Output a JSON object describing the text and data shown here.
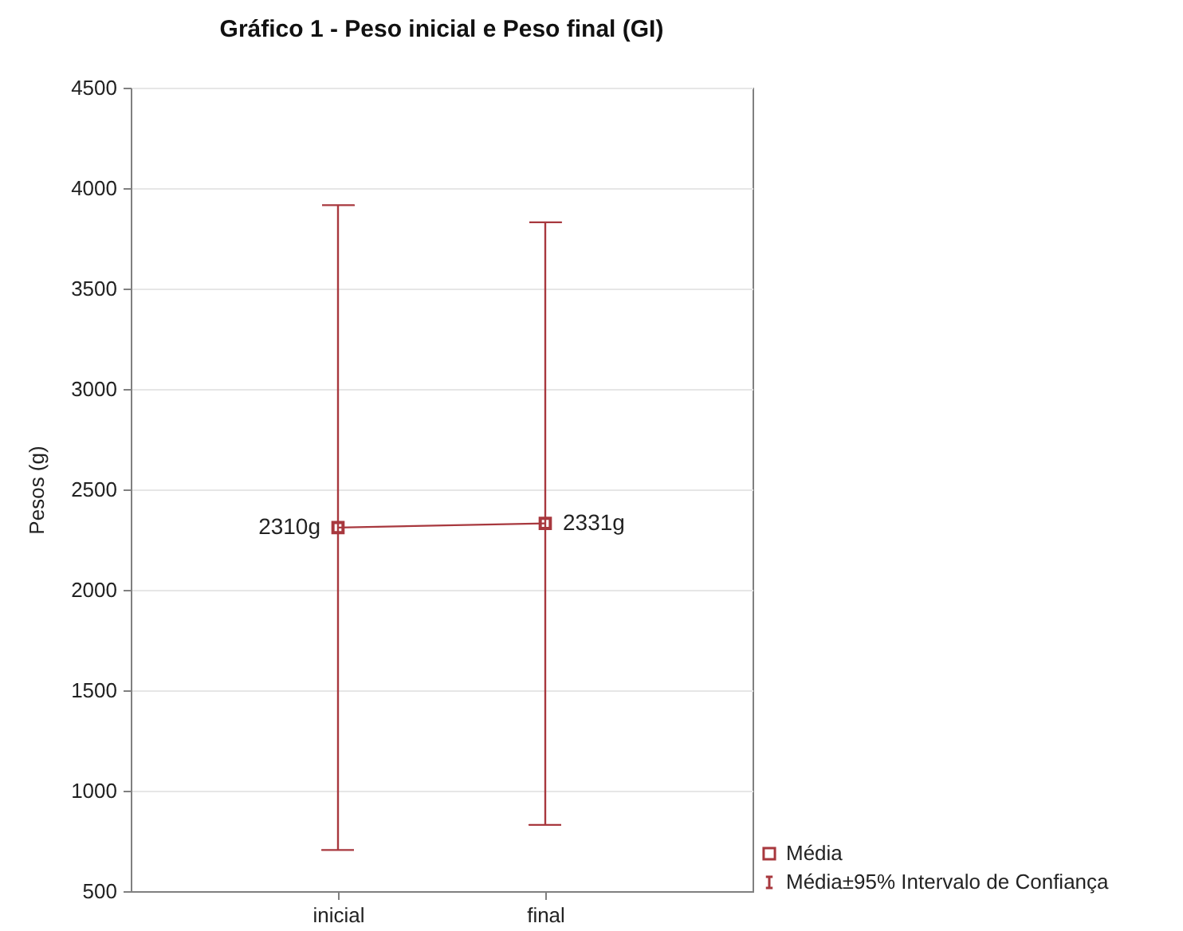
{
  "chart_data": {
    "type": "line",
    "title": "Gráfico 1 - Peso inicial e Peso final (GI)",
    "ylabel": "Pesos (g)",
    "categories": [
      "inicial",
      "final"
    ],
    "series": [
      {
        "name": "Média",
        "color": "#a8383e",
        "values": [
          2310,
          2331
        ],
        "errors": [
          [
            705,
            3915
          ],
          [
            830,
            3830
          ]
        ],
        "value_labels": [
          "2310g",
          "2331g"
        ]
      }
    ],
    "ylim": [
      500,
      4500
    ],
    "yticks": [
      500,
      1000,
      1500,
      2000,
      2500,
      3000,
      3500,
      4000,
      4500
    ],
    "grid": "y",
    "legend": "bottom right",
    "marker": "square",
    "line_style": "solid",
    "annotations": [
      "Média±95% Intervalo de Confiança"
    ]
  }
}
